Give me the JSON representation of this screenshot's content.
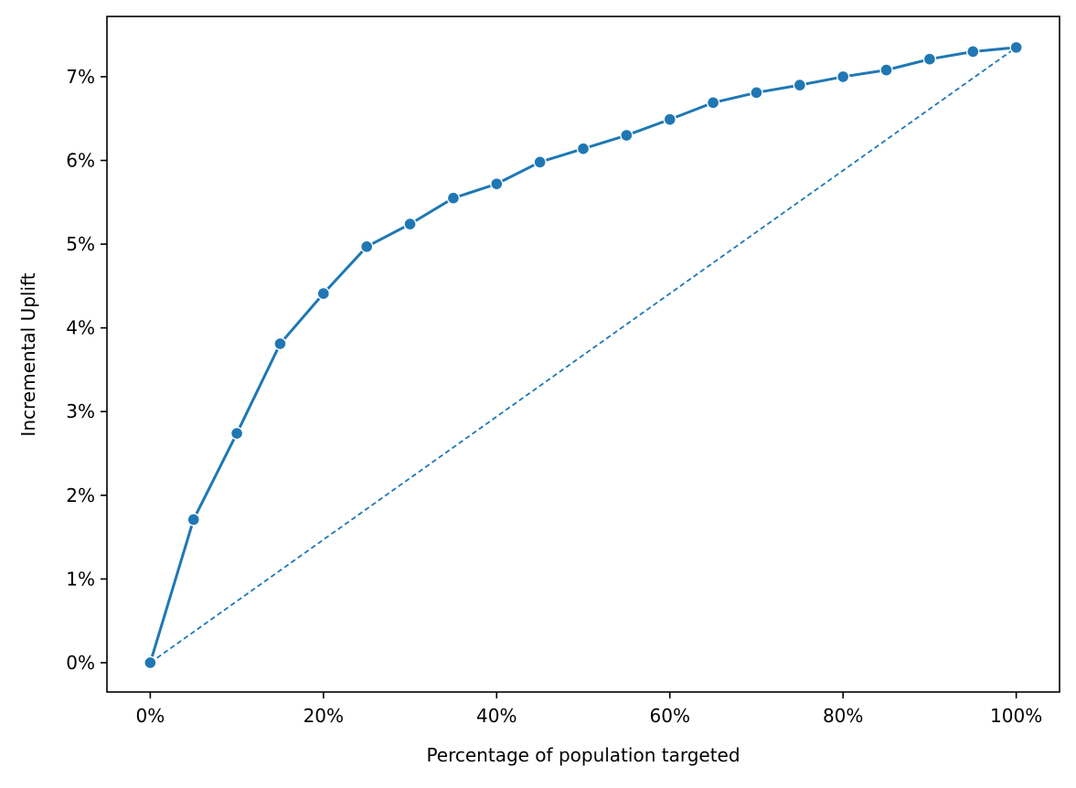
{
  "chart_data": {
    "type": "line",
    "title": "",
    "xlabel": "Percentage of population targeted",
    "ylabel": "Incremental Uplift",
    "xlim": [
      -0.05,
      1.05
    ],
    "ylim": [
      -0.0035,
      0.0772
    ],
    "x_ticks": [
      0,
      0.2,
      0.4,
      0.6,
      0.8,
      1.0
    ],
    "x_tick_labels": [
      "0%",
      "20%",
      "40%",
      "60%",
      "80%",
      "100%"
    ],
    "y_ticks": [
      0,
      0.01,
      0.02,
      0.03,
      0.04,
      0.05,
      0.06,
      0.07
    ],
    "y_tick_labels": [
      "0%",
      "1%",
      "2%",
      "3%",
      "4%",
      "5%",
      "6%",
      "7%"
    ],
    "grid": false,
    "legend": "none",
    "colors": {
      "series": "#1f77b4",
      "random_baseline": "#1f77b4"
    },
    "series": [
      {
        "style": "solid-with-markers",
        "x": [
          0,
          0.05,
          0.1,
          0.15,
          0.2,
          0.25,
          0.3,
          0.35,
          0.4,
          0.45,
          0.5,
          0.55,
          0.6,
          0.65,
          0.7,
          0.75,
          0.8,
          0.85,
          0.9,
          0.95,
          1.0
        ],
        "y": [
          0,
          0.0171,
          0.0274,
          0.0381,
          0.0441,
          0.0497,
          0.0524,
          0.0555,
          0.0572,
          0.0598,
          0.0614,
          0.063,
          0.0649,
          0.0669,
          0.0681,
          0.069,
          0.07,
          0.0708,
          0.0721,
          0.073,
          0.0735
        ]
      },
      {
        "style": "dashed",
        "x": [
          0,
          1.0
        ],
        "y": [
          0,
          0.0735
        ]
      }
    ]
  }
}
